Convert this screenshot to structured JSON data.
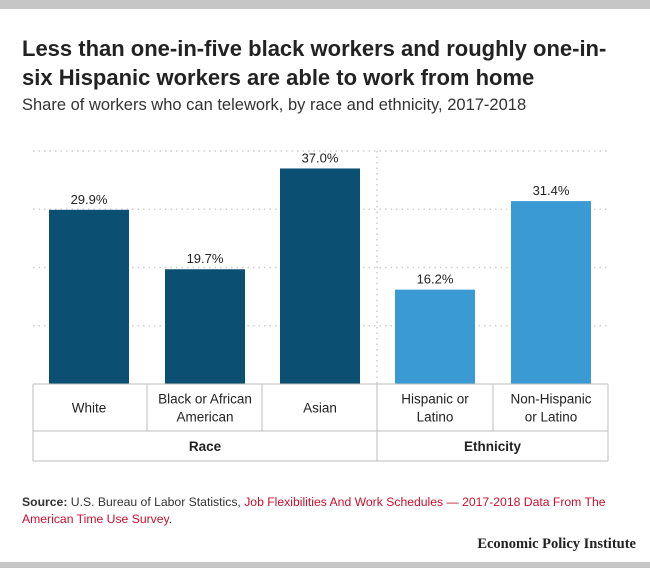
{
  "header": {
    "title": "Less than one-in-five black workers and roughly one-in-six Hispanic workers are able to work from home",
    "subtitle": "Share of workers who can telework, by race and ethnicity, 2017-2018"
  },
  "chart_data": {
    "type": "bar",
    "categories": [
      "White",
      "Black or African American",
      "Asian",
      "Hispanic or Latino",
      "Non-Hispanic or Latino"
    ],
    "category_lines": [
      [
        "White"
      ],
      [
        "Black or African",
        "American"
      ],
      [
        "Asian"
      ],
      [
        "Hispanic or",
        "Latino"
      ],
      [
        "Non-Hispanic",
        "or Latino"
      ]
    ],
    "values": [
      29.9,
      19.7,
      37.0,
      16.2,
      31.4
    ],
    "labels": [
      "29.9%",
      "19.7%",
      "37.0%",
      "16.2%",
      "31.4%"
    ],
    "groups": [
      {
        "name": "Race",
        "members": [
          0,
          1,
          2
        ],
        "color": "#0b4f72"
      },
      {
        "name": "Ethnicity",
        "members": [
          3,
          4
        ],
        "color": "#3a9ad4"
      }
    ],
    "ylim": [
      0,
      40
    ],
    "gridlines": [
      10,
      20,
      30,
      40
    ],
    "grid": true,
    "xlabel": "",
    "ylabel": ""
  },
  "footer": {
    "source_label": "Source:",
    "source_text": " U.S. Bureau of Labor Statistics, ",
    "source_link": "Job Flexibilities And Work Schedules — 2017-2018 Data From The American Time Use Survey",
    "source_end": ".",
    "brand": "Economic Policy Institute"
  }
}
